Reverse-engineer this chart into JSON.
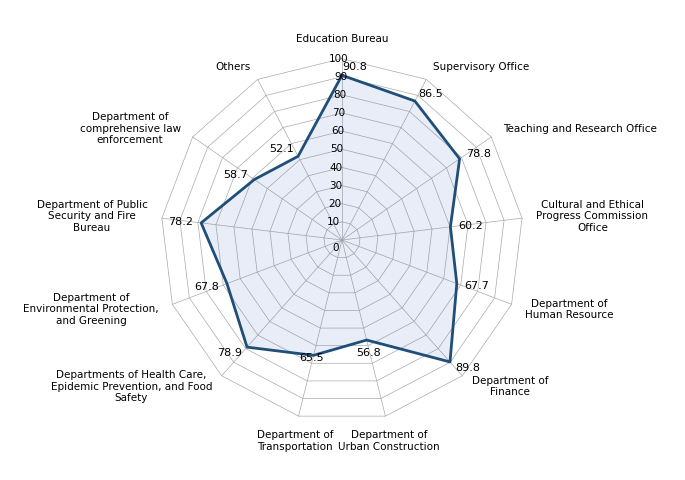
{
  "categories": [
    "Education Bureau",
    "Supervisory Office",
    "Teaching and Research Office",
    "Cultural and Ethical\nProgress Commission\nOffice",
    "Department of\nHuman Resource",
    "Department of\nFinance",
    "Department of\nUrban Construction",
    "Department of\nTransportation",
    "Departments of Health Care,\nEpidemic Prevention, and Food\nSafety",
    "Department of\nEnvironmental Protection,\nand Greening",
    "Department of Public\nSecurity and Fire\nBureau",
    "Department of\ncomprehensive law\nenforcement",
    "Others"
  ],
  "values": [
    90.8,
    86.5,
    78.8,
    60.2,
    67.7,
    89.8,
    56.8,
    65.5,
    78.9,
    67.8,
    78.2,
    58.7,
    52.1
  ],
  "radial_ticks": [
    0,
    10,
    20,
    30,
    40,
    50,
    60,
    70,
    80,
    90,
    100
  ],
  "max_val": 100,
  "line_color": "#1F4E79",
  "fill_color": "#4472C4",
  "fill_alpha": 0.12,
  "grid_color": "#AAAAAA",
  "spoke_color": "#AAAAAA",
  "background_color": "#FFFFFF",
  "line_width": 2.0,
  "label_fontsize": 7.5,
  "tick_fontsize": 7.5,
  "value_fontsize": 8.0,
  "ha_list": [
    "center",
    "left",
    "left",
    "left",
    "left",
    "left",
    "center",
    "center",
    "right",
    "right",
    "right",
    "right",
    "right"
  ],
  "va_list": [
    "bottom",
    "center",
    "center",
    "center",
    "center",
    "center",
    "top",
    "top",
    "center",
    "center",
    "center",
    "center",
    "center"
  ],
  "value_ha_list": [
    "left",
    "left",
    "left",
    "left",
    "left",
    "left",
    "center",
    "center",
    "right",
    "right",
    "right",
    "right",
    "right"
  ],
  "value_va_list": [
    "center",
    "center",
    "center",
    "center",
    "center",
    "center",
    "top",
    "bottom",
    "center",
    "center",
    "center",
    "center",
    "center"
  ]
}
